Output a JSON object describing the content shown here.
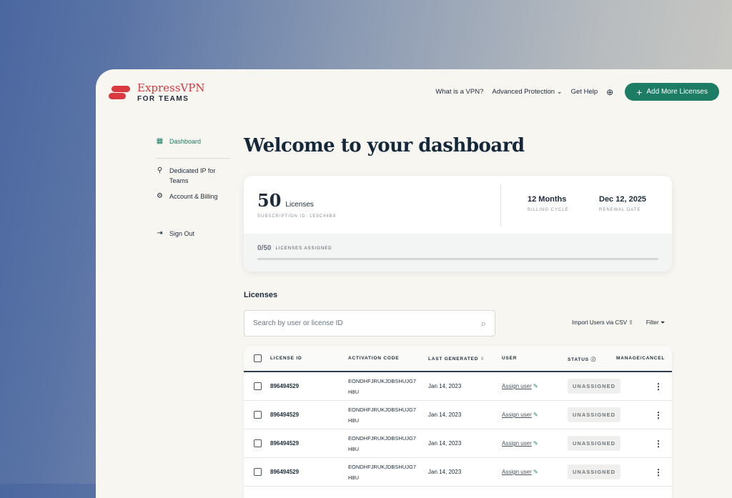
{
  "header": {
    "brand": "ExpressVPN",
    "brand_sub": "FOR TEAMS",
    "nav": [
      "What is a VPN?",
      "Advanced Protection",
      "Get Help"
    ],
    "add_button": "Add More Licenses"
  },
  "sidebar": {
    "items": [
      {
        "label": "Dashboard",
        "icon": "grid-icon"
      },
      {
        "label": "Dedicated IP for Teams",
        "icon": "location-pin-icon"
      },
      {
        "label": "Account & Billing",
        "icon": "gear-icon"
      },
      {
        "label": "Sign Out",
        "icon": "sign-out-icon"
      }
    ]
  },
  "main": {
    "title": "Welcome to your dashboard",
    "summary": {
      "count": "50",
      "count_label": "Licenses",
      "subscription_id": "SUBSCRIPTION ID: 1E9C46B8",
      "billing_value": "12 Months",
      "billing_label": "BILLING CYCLE",
      "renewal_value": "Dec 12, 2025",
      "renewal_label": "RENEWAL DATE",
      "assigned": "0/50",
      "assigned_label": "LICENSES ASSIGNED",
      "assigned_progress": 0
    },
    "licenses_heading": "Licenses",
    "search": {
      "placeholder": "Search by user or license ID"
    },
    "import_label": "Import Users via CSV",
    "filter_label": "Filter",
    "columns": [
      "LICENSE ID",
      "ACTIVATION CODE",
      "LAST GENERATED",
      "USER",
      "STATUS",
      "MANAGE/CANCEL"
    ],
    "rows": [
      {
        "id": "896494529",
        "code1": "EONDHFJRUKJDBSHUJG7",
        "code2": "H8U",
        "date": "Jan 14, 2023",
        "user": "Assign user",
        "status": "UNASSIGNED"
      },
      {
        "id": "896494529",
        "code1": "EONDHFJRUKJDBSHUJG7",
        "code2": "H8U",
        "date": "Jan 14, 2023",
        "user": "Assign user",
        "status": "UNASSIGNED"
      },
      {
        "id": "896494529",
        "code1": "EONDHFJRUKJDBSHUJG7",
        "code2": "H8U",
        "date": "Jan 14, 2023",
        "user": "Assign user",
        "status": "UNASSIGNED"
      },
      {
        "id": "896494529",
        "code1": "EONDHFJRUKJDBSHUJG7",
        "code2": "H8U",
        "date": "Jan 14, 2023",
        "user": "Assign user",
        "status": "UNASSIGNED"
      }
    ]
  },
  "colors": {
    "brand": "#da3940",
    "accent": "#1c7c64"
  }
}
